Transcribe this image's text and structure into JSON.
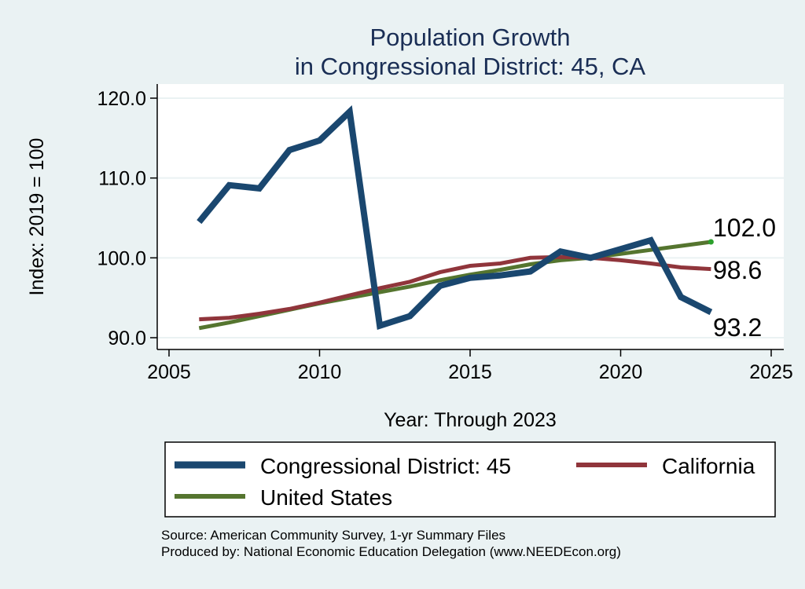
{
  "chart_data": {
    "type": "line",
    "title_lines": [
      "Population Growth",
      "in Congressional District: 45, CA"
    ],
    "xlabel": "Year: Through 2023",
    "ylabel": "Index: 2019 = 100",
    "xlim": [
      2005,
      2025
    ],
    "ylim": [
      88.5,
      120.0
    ],
    "x_ticks": [
      {
        "value": 2005,
        "label": "2005"
      },
      {
        "value": 2010,
        "label": "2010"
      },
      {
        "value": 2015,
        "label": "2015"
      },
      {
        "value": 2020,
        "label": "2020"
      },
      {
        "value": 2025,
        "label": "2025"
      }
    ],
    "y_ticks": [
      {
        "value": 90,
        "label": "90.0"
      },
      {
        "value": 100,
        "label": "100.0"
      },
      {
        "value": 110,
        "label": "110.0"
      },
      {
        "value": 120,
        "label": "120.0"
      }
    ],
    "grid": true,
    "legend_position": "bottom",
    "series": [
      {
        "name": "Congressional District: 45",
        "color": "#1a476f",
        "end_label": "93.2",
        "points": [
          [
            2006,
            104.5
          ],
          [
            2007,
            109.1
          ],
          [
            2008,
            108.7
          ],
          [
            2009,
            113.5
          ],
          [
            2010,
            114.7
          ],
          [
            2011,
            118.3
          ],
          [
            2012,
            91.5
          ],
          [
            2013,
            92.7
          ],
          [
            2014,
            96.5
          ],
          [
            2015,
            97.5
          ],
          [
            2016,
            97.8
          ],
          [
            2017,
            98.3
          ],
          [
            2018,
            100.8
          ],
          [
            2019,
            100.0
          ],
          [
            2020,
            101.1
          ],
          [
            2021,
            102.2
          ],
          [
            2022,
            95.1
          ],
          [
            2023,
            93.2
          ]
        ]
      },
      {
        "name": "California",
        "color": "#90353b",
        "end_label": "98.6",
        "points": [
          [
            2006,
            92.3
          ],
          [
            2007,
            92.5
          ],
          [
            2008,
            93.0
          ],
          [
            2009,
            93.6
          ],
          [
            2010,
            94.4
          ],
          [
            2011,
            95.3
          ],
          [
            2012,
            96.2
          ],
          [
            2013,
            97.0
          ],
          [
            2014,
            98.2
          ],
          [
            2015,
            99.0
          ],
          [
            2016,
            99.3
          ],
          [
            2017,
            100.0
          ],
          [
            2018,
            100.1
          ],
          [
            2019,
            100.0
          ],
          [
            2020,
            99.7
          ],
          [
            2021,
            99.3
          ],
          [
            2022,
            98.8
          ],
          [
            2023,
            98.6
          ]
        ]
      },
      {
        "name": "United States",
        "color": "#55752f",
        "end_label": "102.0",
        "points": [
          [
            2006,
            91.2
          ],
          [
            2007,
            91.9
          ],
          [
            2008,
            92.7
          ],
          [
            2009,
            93.5
          ],
          [
            2010,
            94.3
          ],
          [
            2011,
            95.0
          ],
          [
            2012,
            95.7
          ],
          [
            2013,
            96.4
          ],
          [
            2014,
            97.2
          ],
          [
            2015,
            97.9
          ],
          [
            2016,
            98.5
          ],
          [
            2017,
            99.2
          ],
          [
            2018,
            99.7
          ],
          [
            2019,
            100.0
          ],
          [
            2020,
            100.5
          ],
          [
            2021,
            101.0
          ],
          [
            2022,
            101.5
          ],
          [
            2023,
            102.0
          ]
        ]
      }
    ]
  },
  "source_lines": [
    "Source: American Community Survey, 1-yr Summary Files",
    "Produced by: National Economic Education Delegation (www.NEEDEcon.org)"
  ]
}
